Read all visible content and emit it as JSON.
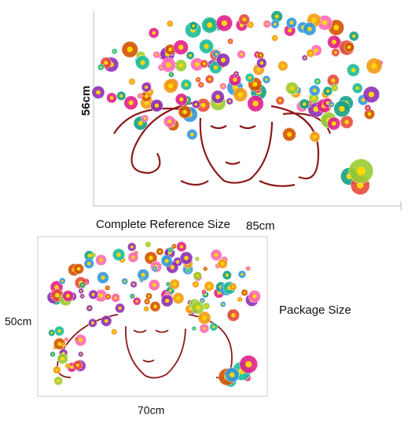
{
  "reference": {
    "height": "56cm",
    "caption": "Complete Reference Size",
    "width": "85cm"
  },
  "package": {
    "height": "50cm",
    "caption": "Package Size",
    "width": "70cm"
  }
}
